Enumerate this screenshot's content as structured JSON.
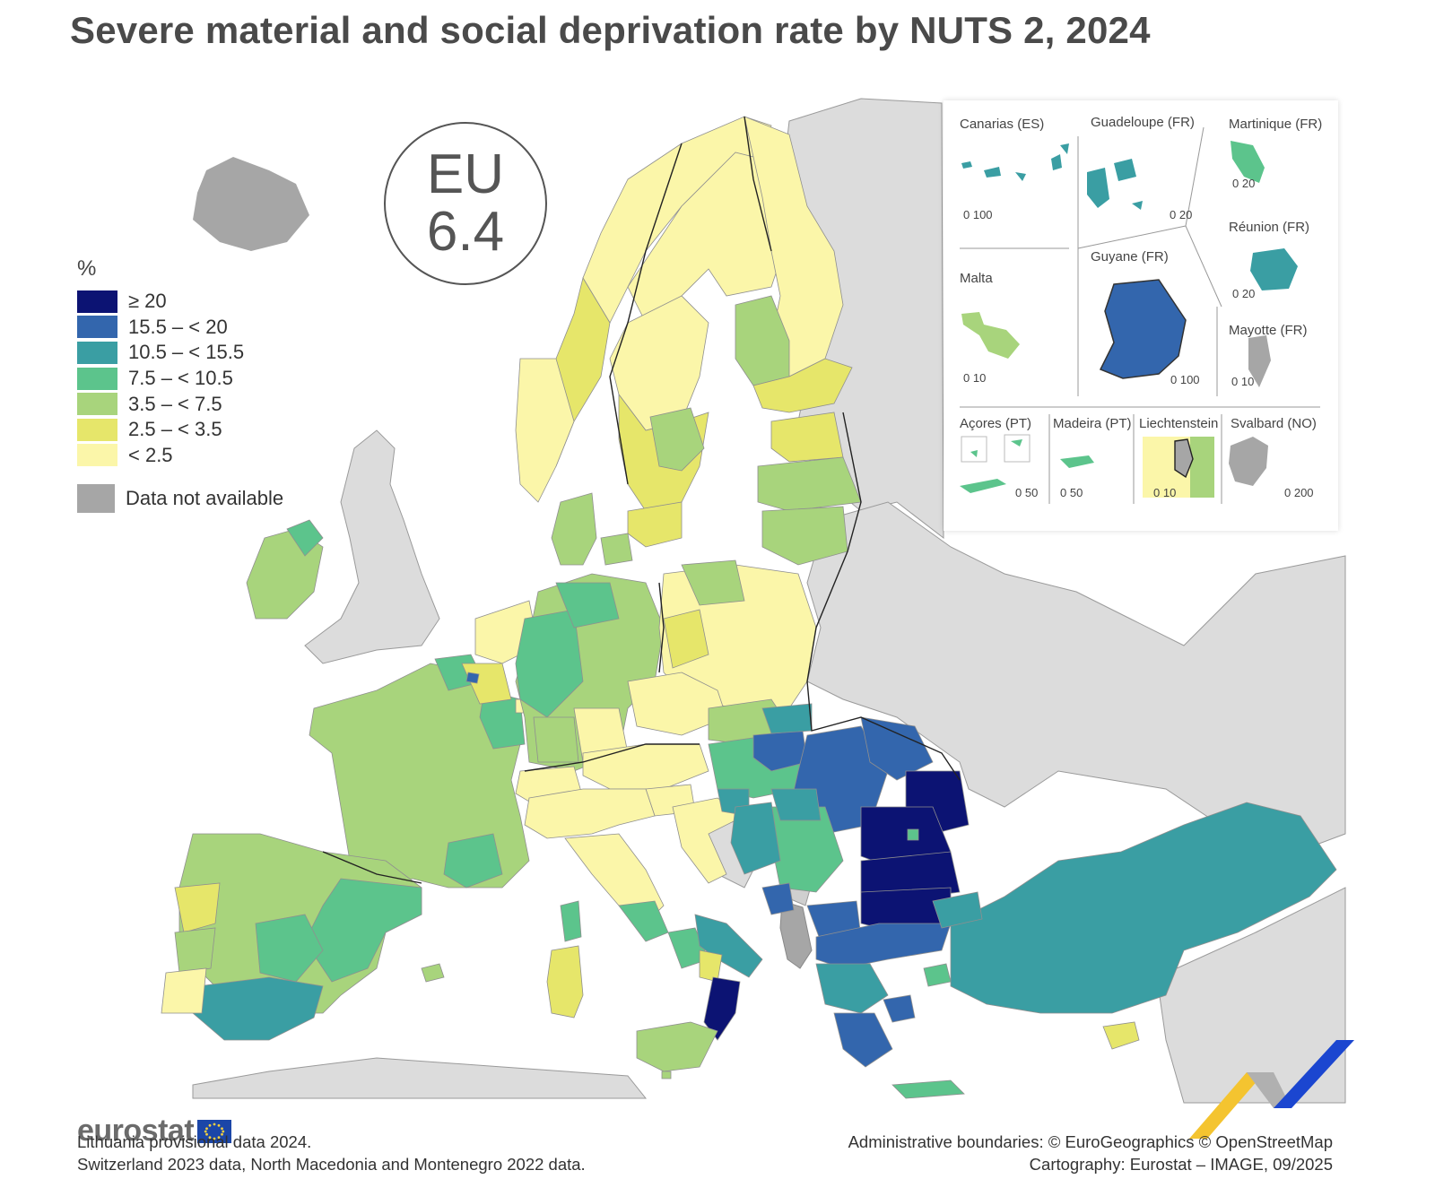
{
  "title": "Severe material and social deprivation rate by NUTS 2, 2024",
  "eu_badge": {
    "label": "EU",
    "value": "6.4"
  },
  "legend": {
    "unit": "%",
    "classes": [
      {
        "label": "≥ 20",
        "color": "#0c1373"
      },
      {
        "label": "15.5 – < 20",
        "color": "#3366ad"
      },
      {
        "label": "10.5 – < 15.5",
        "color": "#3a9ea3"
      },
      {
        "label": "7.5 – < 10.5",
        "color": "#5cc48c"
      },
      {
        "label": "3.5 – < 7.5",
        "color": "#a8d47c"
      },
      {
        "label": "2.5 – < 3.5",
        "color": "#e6e66a"
      },
      {
        "label": "< 2.5",
        "color": "#fbf6a9"
      }
    ],
    "na": {
      "label": "Data not available",
      "color": "#a6a6a6"
    }
  },
  "insets": [
    {
      "name": "Canarias (ES)",
      "scale": "0  100"
    },
    {
      "name": "Guadeloupe (FR)",
      "scale": "0  20"
    },
    {
      "name": "Martinique (FR)",
      "scale": "0  20"
    },
    {
      "name": "Réunion (FR)",
      "scale": "0  20"
    },
    {
      "name": "Malta",
      "scale": "0  10"
    },
    {
      "name": "Guyane (FR)",
      "scale": "0   100"
    },
    {
      "name": "Mayotte (FR)",
      "scale": "0 10"
    },
    {
      "name": "Açores (PT)",
      "scale": "0  50"
    },
    {
      "name": "Madeira (PT)",
      "scale": "0     50"
    },
    {
      "name": "Liechtenstein",
      "scale": "0  10"
    },
    {
      "name": "Svalbard (NO)",
      "scale": "0    200"
    }
  ],
  "logo": "eurostat",
  "footnotes": {
    "left1": "Lithuania provisional data 2024.",
    "left2": "Switzerland 2023 data, North Macedonia and Montenegro 2022 data.",
    "right1": "Administrative boundaries: © EuroGeographics © OpenStreetMap",
    "right2": "Cartography: Eurostat – IMAGE, 09/2025"
  }
}
